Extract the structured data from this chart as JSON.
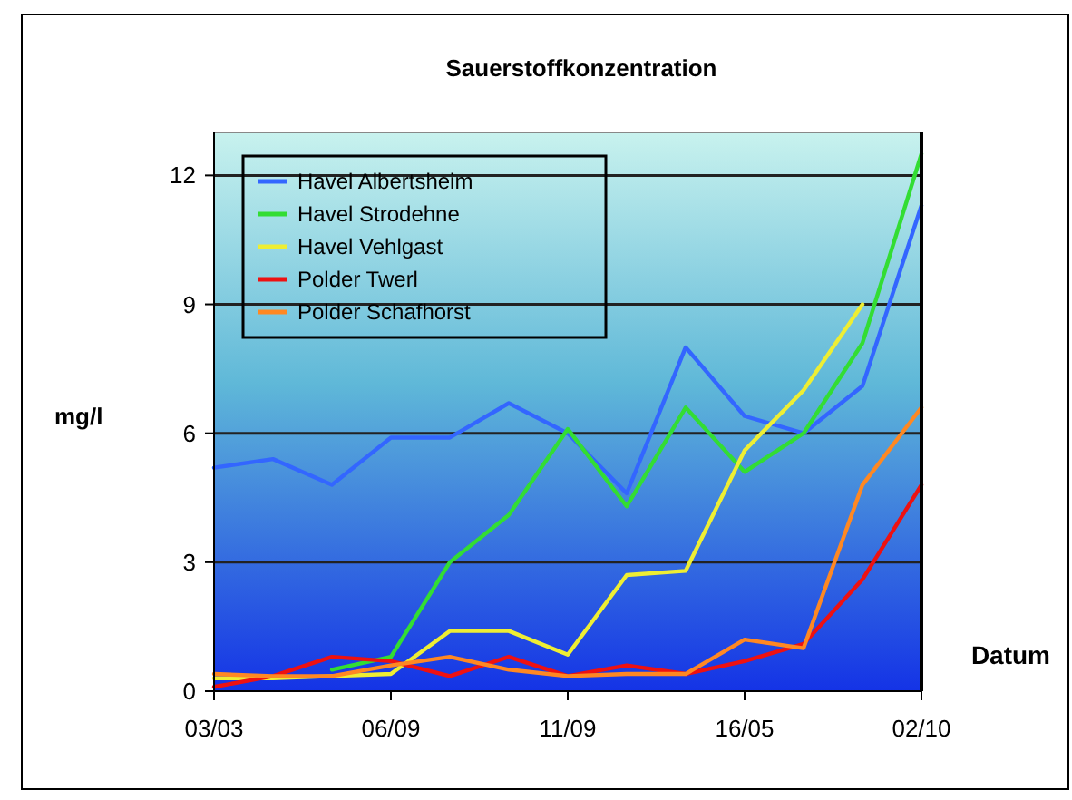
{
  "chart_data": {
    "type": "line",
    "title": "Sauerstoffkonzentration",
    "xlabel": "Datum",
    "ylabel": "mg/l",
    "categories": [
      "03/03",
      null,
      null,
      "06/09",
      null,
      null,
      "11/09",
      null,
      null,
      "16/05",
      null,
      null,
      "02/10"
    ],
    "series": [
      {
        "name": "Havel Albertsheim",
        "color": "#3366ff",
        "values": [
          5.2,
          5.4,
          4.8,
          5.9,
          5.9,
          6.7,
          6.0,
          4.6,
          8.0,
          6.4,
          6.0,
          7.1,
          11.3
        ]
      },
      {
        "name": "Havel Strodehne",
        "color": "#33dd33",
        "values": [
          null,
          null,
          0.5,
          0.8,
          3.0,
          4.1,
          6.1,
          4.3,
          6.6,
          5.1,
          6.0,
          8.1,
          12.5
        ]
      },
      {
        "name": "Havel Vehlgast",
        "color": "#eeee33",
        "values": [
          0.3,
          0.3,
          0.35,
          0.4,
          1.4,
          1.4,
          0.85,
          2.7,
          2.8,
          5.6,
          7.0,
          9.0,
          null
        ]
      },
      {
        "name": "Polder Twerl",
        "color": "#ee1111",
        "values": [
          0.1,
          0.35,
          0.8,
          0.7,
          0.35,
          0.8,
          0.35,
          0.6,
          0.4,
          0.7,
          1.1,
          2.6,
          4.8
        ]
      },
      {
        "name": "Polder Schafhorst",
        "color": "#ff8822",
        "values": [
          0.4,
          0.35,
          0.35,
          0.6,
          0.8,
          0.5,
          0.35,
          0.4,
          0.4,
          1.2,
          1.0,
          4.8,
          6.6
        ]
      }
    ],
    "ylim": [
      0,
      13
    ],
    "yticks": [
      0,
      3,
      6,
      9,
      12
    ],
    "grid": "y",
    "legend": "top left",
    "line_style": "solid",
    "marker": "none"
  }
}
